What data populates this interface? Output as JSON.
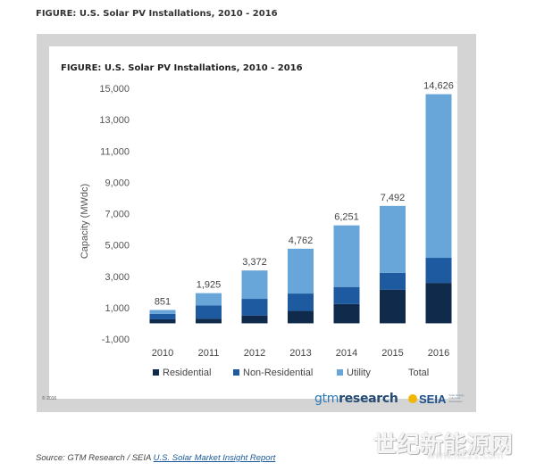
{
  "heading": "FIGURE: U.S. Solar PV Installations, 2010 - 2016",
  "figure": {
    "copyright": "© 2016",
    "brand_gtm": {
      "prefix": "gtm",
      "suffix": "research"
    },
    "brand_seia": {
      "name": "SEIA",
      "tagline": "Solar Energy Industries Association"
    }
  },
  "source": {
    "prefix": "Source: GTM Research / SEIA ",
    "link_text": "U.S. Solar Market Insight Report"
  },
  "watermark": {
    "text": "世纪新能源网",
    "url": "www.NE21.com"
  },
  "chart_data": {
    "type": "bar",
    "stacked": true,
    "title": "FIGURE: U.S. Solar PV Installations, 2010 - 2016",
    "ylabel": "Capacity (MWdc)",
    "xlabel": "",
    "categories": [
      "2010",
      "2011",
      "2012",
      "2013",
      "2014",
      "2015",
      "2016"
    ],
    "y_ticks": [
      -1000,
      1000,
      3000,
      5000,
      7000,
      9000,
      11000,
      13000,
      15000
    ],
    "y_tick_labels": [
      "-1,000",
      "1,000",
      "3,000",
      "5,000",
      "7,000",
      "9,000",
      "11,000",
      "13,000",
      "15,000"
    ],
    "ylim": [
      -1000,
      15000
    ],
    "grid": false,
    "legend_position": "bottom",
    "series": [
      {
        "name": "Residential",
        "color": "#0f2a4a",
        "values": [
          255,
          300,
          500,
          790,
          1230,
          2150,
          2580
        ]
      },
      {
        "name": "Non-Residential",
        "color": "#1d5aa0",
        "values": [
          345,
          850,
          1060,
          1110,
          1090,
          1070,
          1600
        ]
      },
      {
        "name": "Utility",
        "color": "#68a5d9",
        "values": [
          251,
          775,
          1812,
          2862,
          3931,
          4272,
          10446
        ]
      }
    ],
    "totals": [
      851,
      1925,
      3372,
      4762,
      6251,
      7492,
      14626
    ],
    "total_labels": [
      "851",
      "1,925",
      "3,372",
      "4,762",
      "6,251",
      "7,492",
      "14,626"
    ],
    "total_legend_label": "Total"
  }
}
